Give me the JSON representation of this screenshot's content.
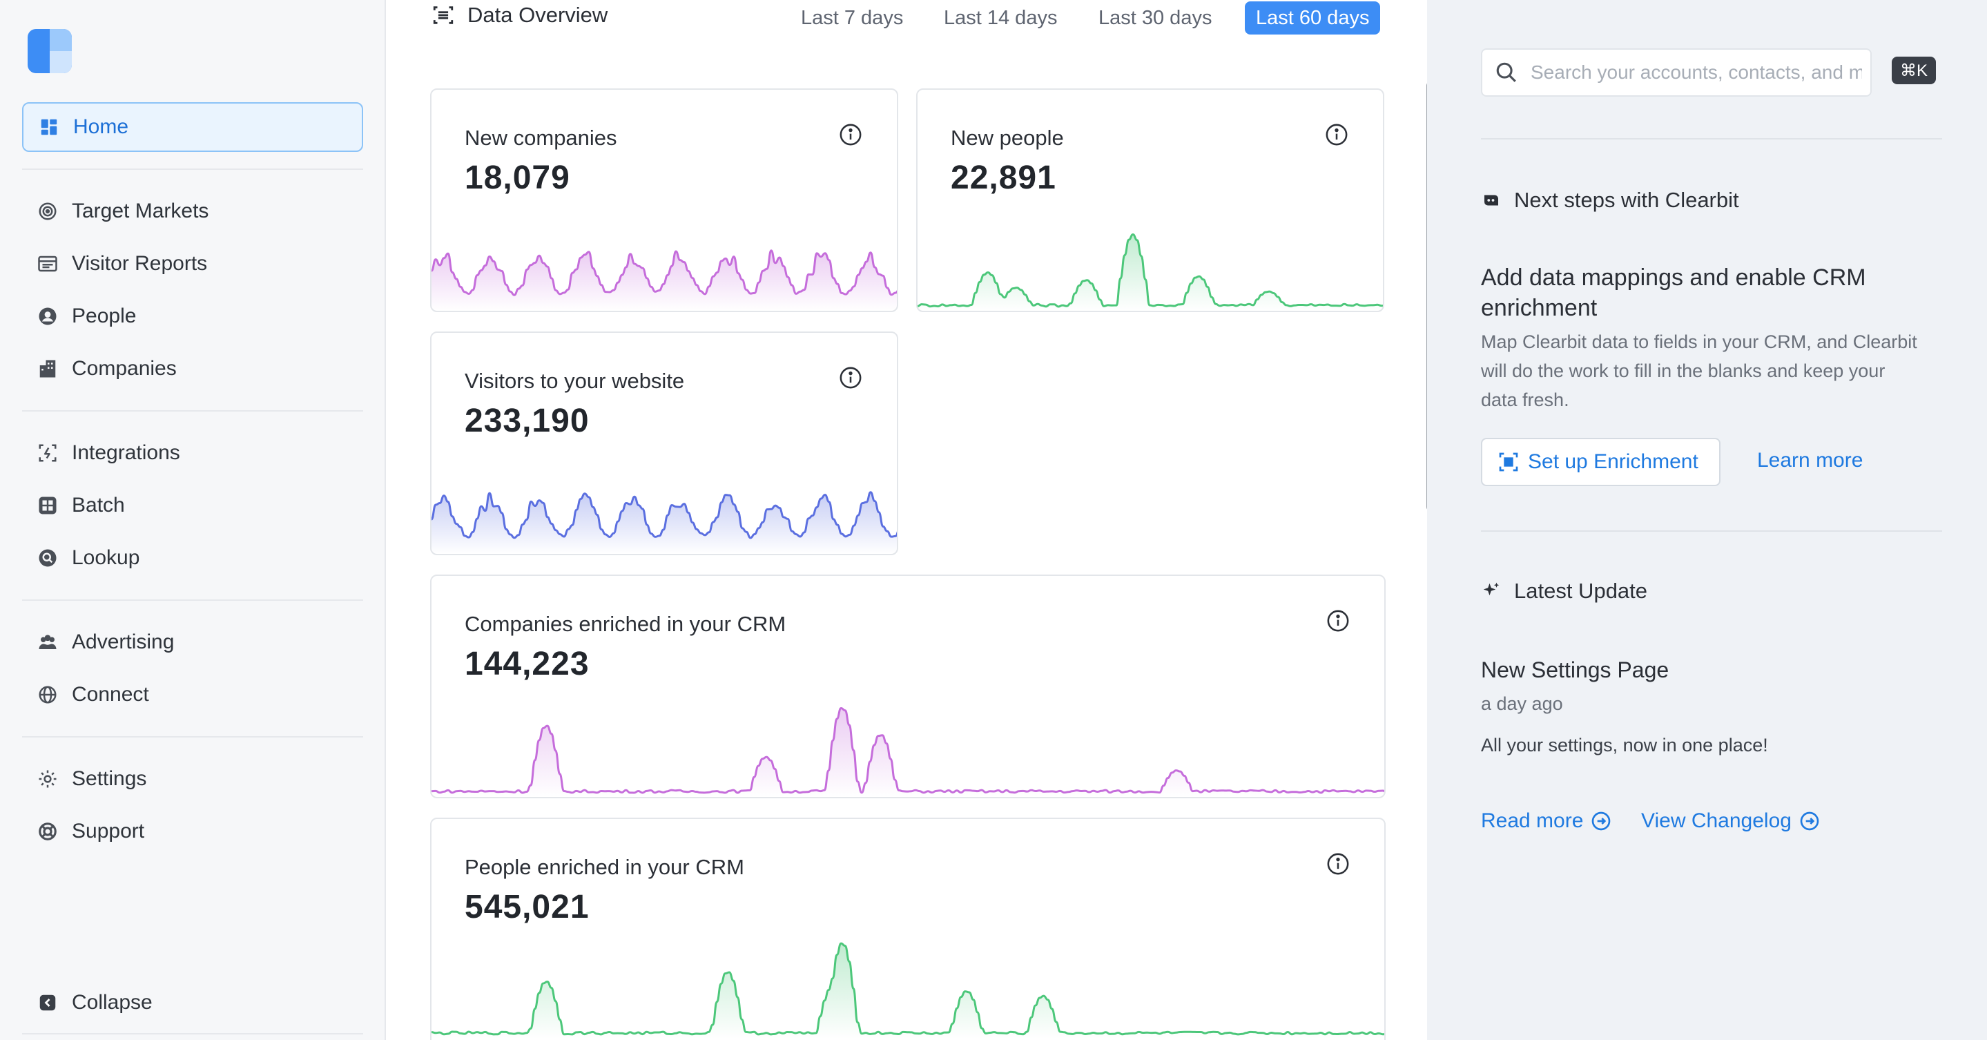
{
  "sidebar": {
    "items": [
      {
        "label": "Home",
        "icon": "dashboard-icon",
        "active": true
      },
      {
        "label": "Target Markets",
        "icon": "target-icon"
      },
      {
        "label": "Visitor Reports",
        "icon": "report-icon"
      },
      {
        "label": "People",
        "icon": "people-icon"
      },
      {
        "label": "Companies",
        "icon": "building-icon"
      },
      {
        "label": "Integrations",
        "icon": "integrations-icon"
      },
      {
        "label": "Batch",
        "icon": "batch-icon"
      },
      {
        "label": "Lookup",
        "icon": "lookup-icon"
      },
      {
        "label": "Advertising",
        "icon": "advertising-icon"
      },
      {
        "label": "Connect",
        "icon": "globe-icon"
      },
      {
        "label": "Settings",
        "icon": "gear-icon"
      },
      {
        "label": "Support",
        "icon": "lifebuoy-icon"
      }
    ],
    "collapse_label": "Collapse"
  },
  "main": {
    "title": "Data Overview",
    "ranges": [
      "Last 7 days",
      "Last 14 days",
      "Last 30 days",
      "Last 60 days"
    ],
    "active_range": "Last 60 days",
    "cards": [
      {
        "label": "New companies",
        "value": "18,079",
        "color": "#c56ddb"
      },
      {
        "label": "New people",
        "value": "22,891",
        "color": "#4cc77a"
      },
      {
        "label": "Visitors to your website",
        "value": "233,190",
        "color": "#5b6fe0"
      },
      {
        "label": "Companies enriched in your CRM",
        "value": "144,223",
        "color": "#c56ddb"
      },
      {
        "label": "People enriched in your CRM",
        "value": "545,021",
        "color": "#4cc77a"
      }
    ]
  },
  "right": {
    "search_placeholder": "Search your accounts, contacts, and more",
    "shortcut": "⌘K",
    "next_steps_heading": "Next steps with Clearbit",
    "next_steps_title": "Add data mappings and enable CRM enrichment",
    "next_steps_text": "Map Clearbit data to fields in your CRM, and Clearbit will do the work to fill in the blanks and keep your data fresh.",
    "setup_button": "Set up Enrichment",
    "learn_more": "Learn more",
    "latest_heading": "Latest Update",
    "update_title": "New Settings Page",
    "update_time": "a day ago",
    "update_text": "All your settings, now in one place!",
    "read_more": "Read more",
    "view_changelog": "View Changelog"
  },
  "colors": {
    "accent": "#3d8df5",
    "link": "#1f7ae0",
    "purple": "#c56ddb",
    "green": "#4cc77a",
    "indigo": "#5b6fe0"
  }
}
